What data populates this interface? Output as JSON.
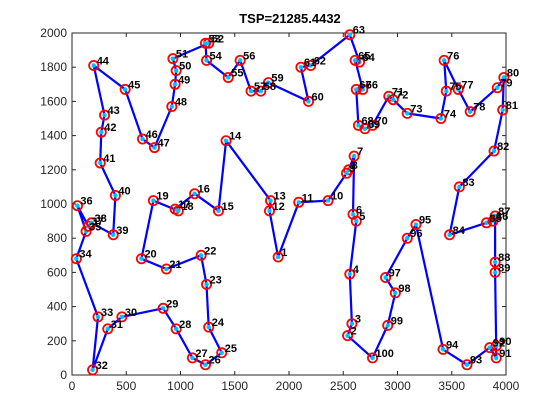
{
  "chart_data": {
    "type": "line",
    "title": "TSP=21285.4432",
    "xlabel": "",
    "ylabel": "",
    "xlim": [
      0,
      4000
    ],
    "ylim": [
      0,
      2000
    ],
    "x_ticks": [
      "0",
      "500",
      "1000",
      "1500",
      "2000",
      "2500",
      "3000",
      "3500",
      "4000"
    ],
    "y_ticks": [
      "0",
      "200",
      "400",
      "600",
      "800",
      "1000",
      "1200",
      "1400",
      "1600",
      "1800",
      "2000"
    ],
    "grid": false,
    "legend": "none",
    "colors": {
      "route": "#0000ff",
      "marker_face": "#00bfff",
      "marker_edge": "#ff0000",
      "axis": "#262626"
    },
    "route_order": [
      "1",
      "2",
      "3",
      "4",
      "5",
      "6",
      "7",
      "8",
      "9",
      "10",
      "11",
      "12",
      "13",
      "14",
      "15",
      "16",
      "17",
      "18",
      "19",
      "20",
      "21",
      "22",
      "23",
      "24",
      "25",
      "26",
      "27",
      "28",
      "29",
      "30",
      "31",
      "32",
      "33",
      "34",
      "35",
      "36",
      "37",
      "38",
      "39",
      "40",
      "41",
      "42",
      "43",
      "44",
      "45",
      "46",
      "47",
      "48",
      "49",
      "50",
      "51",
      "52",
      "53",
      "54",
      "55",
      "56",
      "57",
      "58",
      "59",
      "60",
      "61",
      "62",
      "63",
      "64",
      "65",
      "66",
      "67",
      "68",
      "69",
      "70",
      "71",
      "72",
      "73",
      "74",
      "75",
      "76",
      "77",
      "78",
      "79",
      "80",
      "81",
      "82",
      "83",
      "84",
      "85",
      "86",
      "87",
      "88",
      "89",
      "90",
      "91",
      "92",
      "93",
      "94",
      "95",
      "96",
      "97",
      "98",
      "99",
      "100"
    ],
    "points": [
      {
        "label": "1",
        "x": 1900,
        "y": 690
      },
      {
        "label": "2",
        "x": 2540,
        "y": 230
      },
      {
        "label": "3",
        "x": 2580,
        "y": 300
      },
      {
        "label": "4",
        "x": 2560,
        "y": 590
      },
      {
        "label": "5",
        "x": 2620,
        "y": 900
      },
      {
        "label": "6",
        "x": 2590,
        "y": 940
      },
      {
        "label": "7",
        "x": 2600,
        "y": 1280
      },
      {
        "label": "8",
        "x": 2550,
        "y": 1200
      },
      {
        "label": "9",
        "x": 2530,
        "y": 1180
      },
      {
        "label": "10",
        "x": 2360,
        "y": 1020
      },
      {
        "label": "11",
        "x": 2090,
        "y": 1010
      },
      {
        "label": "12",
        "x": 1820,
        "y": 960
      },
      {
        "label": "13",
        "x": 1830,
        "y": 1020
      },
      {
        "label": "14",
        "x": 1420,
        "y": 1370
      },
      {
        "label": "15",
        "x": 1350,
        "y": 960
      },
      {
        "label": "16",
        "x": 1130,
        "y": 1060
      },
      {
        "label": "17",
        "x": 950,
        "y": 970
      },
      {
        "label": "18",
        "x": 980,
        "y": 960
      },
      {
        "label": "19",
        "x": 750,
        "y": 1020
      },
      {
        "label": "20",
        "x": 640,
        "y": 680
      },
      {
        "label": "21",
        "x": 870,
        "y": 620
      },
      {
        "label": "22",
        "x": 1190,
        "y": 700
      },
      {
        "label": "23",
        "x": 1240,
        "y": 530
      },
      {
        "label": "24",
        "x": 1260,
        "y": 280
      },
      {
        "label": "25",
        "x": 1380,
        "y": 130
      },
      {
        "label": "26",
        "x": 1230,
        "y": 60
      },
      {
        "label": "27",
        "x": 1110,
        "y": 100
      },
      {
        "label": "28",
        "x": 960,
        "y": 270
      },
      {
        "label": "29",
        "x": 840,
        "y": 390
      },
      {
        "label": "30",
        "x": 460,
        "y": 340
      },
      {
        "label": "31",
        "x": 330,
        "y": 270
      },
      {
        "label": "32",
        "x": 190,
        "y": 30
      },
      {
        "label": "33",
        "x": 240,
        "y": 340
      },
      {
        "label": "34",
        "x": 40,
        "y": 680
      },
      {
        "label": "35",
        "x": 130,
        "y": 840
      },
      {
        "label": "36",
        "x": 50,
        "y": 990
      },
      {
        "label": "37",
        "x": 150,
        "y": 870
      },
      {
        "label": "38",
        "x": 180,
        "y": 890
      },
      {
        "label": "39",
        "x": 380,
        "y": 820
      },
      {
        "label": "40",
        "x": 400,
        "y": 1050
      },
      {
        "label": "41",
        "x": 260,
        "y": 1240
      },
      {
        "label": "42",
        "x": 270,
        "y": 1420
      },
      {
        "label": "43",
        "x": 300,
        "y": 1520
      },
      {
        "label": "44",
        "x": 200,
        "y": 1810
      },
      {
        "label": "45",
        "x": 490,
        "y": 1670
      },
      {
        "label": "46",
        "x": 650,
        "y": 1380
      },
      {
        "label": "47",
        "x": 760,
        "y": 1330
      },
      {
        "label": "48",
        "x": 920,
        "y": 1570
      },
      {
        "label": "49",
        "x": 950,
        "y": 1700
      },
      {
        "label": "50",
        "x": 960,
        "y": 1780
      },
      {
        "label": "51",
        "x": 930,
        "y": 1850
      },
      {
        "label": "52",
        "x": 1260,
        "y": 1940
      },
      {
        "label": "53",
        "x": 1230,
        "y": 1940
      },
      {
        "label": "54",
        "x": 1240,
        "y": 1840
      },
      {
        "label": "55",
        "x": 1440,
        "y": 1740
      },
      {
        "label": "56",
        "x": 1550,
        "y": 1840
      },
      {
        "label": "57",
        "x": 1650,
        "y": 1660
      },
      {
        "label": "58",
        "x": 1740,
        "y": 1660
      },
      {
        "label": "59",
        "x": 1810,
        "y": 1710
      },
      {
        "label": "60",
        "x": 2180,
        "y": 1600
      },
      {
        "label": "61",
        "x": 2110,
        "y": 1800
      },
      {
        "label": "62",
        "x": 2200,
        "y": 1810
      },
      {
        "label": "63",
        "x": 2560,
        "y": 1990
      },
      {
        "label": "64",
        "x": 2650,
        "y": 1830
      },
      {
        "label": "65",
        "x": 2610,
        "y": 1840
      },
      {
        "label": "66",
        "x": 2680,
        "y": 1670
      },
      {
        "label": "67",
        "x": 2620,
        "y": 1670
      },
      {
        "label": "68",
        "x": 2640,
        "y": 1460
      },
      {
        "label": "69",
        "x": 2700,
        "y": 1440
      },
      {
        "label": "70",
        "x": 2770,
        "y": 1460
      },
      {
        "label": "71",
        "x": 2920,
        "y": 1630
      },
      {
        "label": "72",
        "x": 2960,
        "y": 1610
      },
      {
        "label": "73",
        "x": 3090,
        "y": 1530
      },
      {
        "label": "74",
        "x": 3400,
        "y": 1500
      },
      {
        "label": "75",
        "x": 3450,
        "y": 1660
      },
      {
        "label": "76",
        "x": 3430,
        "y": 1840
      },
      {
        "label": "77",
        "x": 3560,
        "y": 1670
      },
      {
        "label": "78",
        "x": 3670,
        "y": 1540
      },
      {
        "label": "79",
        "x": 3920,
        "y": 1680
      },
      {
        "label": "80",
        "x": 3980,
        "y": 1740
      },
      {
        "label": "81",
        "x": 3970,
        "y": 1550
      },
      {
        "label": "82",
        "x": 3890,
        "y": 1310
      },
      {
        "label": "83",
        "x": 3570,
        "y": 1100
      },
      {
        "label": "84",
        "x": 3480,
        "y": 820
      },
      {
        "label": "85",
        "x": 3820,
        "y": 890
      },
      {
        "label": "86",
        "x": 3880,
        "y": 900
      },
      {
        "label": "87",
        "x": 3900,
        "y": 930
      },
      {
        "label": "88",
        "x": 3900,
        "y": 660
      },
      {
        "label": "89",
        "x": 3900,
        "y": 600
      },
      {
        "label": "90",
        "x": 3910,
        "y": 170
      },
      {
        "label": "91",
        "x": 3910,
        "y": 100
      },
      {
        "label": "92",
        "x": 3850,
        "y": 160
      },
      {
        "label": "93",
        "x": 3640,
        "y": 60
      },
      {
        "label": "94",
        "x": 3420,
        "y": 150
      },
      {
        "label": "95",
        "x": 3170,
        "y": 880
      },
      {
        "label": "96",
        "x": 3090,
        "y": 800
      },
      {
        "label": "97",
        "x": 2890,
        "y": 570
      },
      {
        "label": "98",
        "x": 2980,
        "y": 480
      },
      {
        "label": "99",
        "x": 2910,
        "y": 290
      },
      {
        "label": "100",
        "x": 2770,
        "y": 100
      }
    ],
    "route": [
      "32",
      "31",
      "30",
      "29",
      "28",
      "27",
      "26",
      "25",
      "24",
      "23",
      "22",
      "21",
      "20",
      "19",
      "18",
      "17",
      "16",
      "15",
      "14",
      "13",
      "12",
      "1",
      "11",
      "10",
      "9",
      "8",
      "7",
      "6",
      "5",
      "4",
      "3",
      "2",
      "100",
      "99",
      "98",
      "97",
      "96",
      "95",
      "94",
      "93",
      "92",
      "91",
      "90",
      "89",
      "88",
      "87",
      "86",
      "85",
      "84",
      "83",
      "82",
      "81",
      "80",
      "79",
      "78",
      "77",
      "76",
      "75",
      "74",
      "73",
      "72",
      "71",
      "70",
      "69",
      "68",
      "67",
      "66",
      "65",
      "64",
      "63",
      "62",
      "61",
      "60",
      "59",
      "58",
      "57",
      "56",
      "55",
      "54",
      "53",
      "52",
      "51",
      "50",
      "49",
      "48",
      "47",
      "46",
      "45",
      "44",
      "43",
      "42",
      "41",
      "40",
      "39",
      "38",
      "37",
      "36",
      "35",
      "34",
      "33",
      "32"
    ]
  }
}
